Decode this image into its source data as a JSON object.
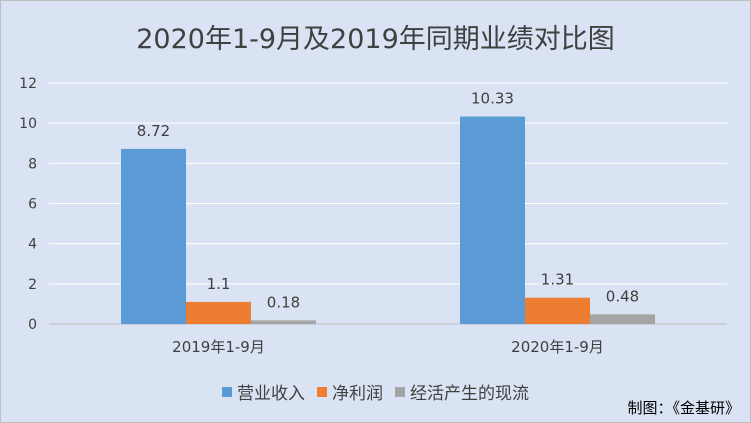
{
  "chart_data": {
    "type": "bar",
    "title": "2020年1-9月及2019年同期业绩对比图",
    "categories": [
      "2019年1-9月",
      "2020年1-9月"
    ],
    "series": [
      {
        "name": "营业收入",
        "values": [
          8.72,
          10.33
        ],
        "labels": [
          "8.72",
          "10.33"
        ],
        "color": "#5b9bd5"
      },
      {
        "name": "净利润",
        "values": [
          1.1,
          1.31
        ],
        "labels": [
          "1.1",
          "1.31"
        ],
        "color": "#ed7d31"
      },
      {
        "name": "经活产生的现流",
        "values": [
          0.18,
          0.48
        ],
        "labels": [
          "0.18",
          "0.48"
        ],
        "color": "#a5a5a5"
      }
    ],
    "ylim": [
      0,
      12
    ],
    "yticks": [
      "0",
      "2",
      "4",
      "6",
      "8",
      "10",
      "12"
    ],
    "grid": true,
    "legend": "bottom"
  },
  "source": "制图：《金基研》"
}
